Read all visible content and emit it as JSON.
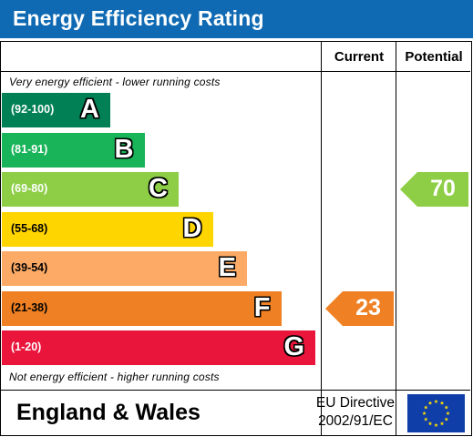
{
  "title": "Energy Efficiency Rating",
  "columns": {
    "current": "Current",
    "potential": "Potential"
  },
  "notes": {
    "top": "Very energy efficient - lower running costs",
    "bottom": "Not energy efficient - higher running costs"
  },
  "footer": {
    "region": "England & Wales",
    "directive_line1": "EU Directive",
    "directive_line2": "2002/91/EC"
  },
  "chart_data": {
    "type": "bar",
    "title": "Energy Efficiency Rating",
    "categories": [
      "A",
      "B",
      "C",
      "D",
      "E",
      "F",
      "G"
    ],
    "ranges": [
      "(92-100)",
      "(81-91)",
      "(69-80)",
      "(55-68)",
      "(39-54)",
      "(21-38)",
      "(1-20)"
    ],
    "colors": [
      "#008054",
      "#19b459",
      "#8dce46",
      "#ffd500",
      "#fcaa65",
      "#ef8023",
      "#e9153b"
    ],
    "current": {
      "value": 23,
      "band": "F",
      "color": "#ef8023"
    },
    "potential": {
      "value": 70,
      "band": "C",
      "color": "#8dce46"
    }
  }
}
